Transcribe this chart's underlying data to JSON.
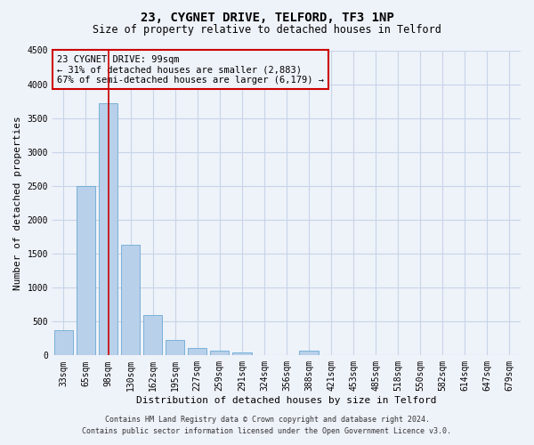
{
  "title": "23, CYGNET DRIVE, TELFORD, TF3 1NP",
  "subtitle": "Size of property relative to detached houses in Telford",
  "xlabel": "Distribution of detached houses by size in Telford",
  "ylabel": "Number of detached properties",
  "categories": [
    "33sqm",
    "65sqm",
    "98sqm",
    "130sqm",
    "162sqm",
    "195sqm",
    "227sqm",
    "259sqm",
    "291sqm",
    "324sqm",
    "356sqm",
    "388sqm",
    "421sqm",
    "453sqm",
    "485sqm",
    "518sqm",
    "550sqm",
    "582sqm",
    "614sqm",
    "647sqm",
    "679sqm"
  ],
  "bar_values": [
    370,
    2500,
    3720,
    1630,
    590,
    225,
    105,
    65,
    45,
    0,
    0,
    65,
    0,
    0,
    0,
    0,
    0,
    0,
    0,
    0,
    0
  ],
  "bar_color": "#b8d0ea",
  "bar_edgecolor": "#6aaad4",
  "grid_color": "#c8d4e8",
  "ylim": [
    0,
    4500
  ],
  "yticks": [
    0,
    500,
    1000,
    1500,
    2000,
    2500,
    3000,
    3500,
    4000,
    4500
  ],
  "highlight_bar_index": 2,
  "highlight_line_color": "#cc0000",
  "annotation_line1": "23 CYGNET DRIVE: 99sqm",
  "annotation_line2": "← 31% of detached houses are smaller (2,883)",
  "annotation_line3": "67% of semi-detached houses are larger (6,179) →",
  "annotation_box_color": "#cc0000",
  "footer_line1": "Contains HM Land Registry data © Crown copyright and database right 2024.",
  "footer_line2": "Contains public sector information licensed under the Open Government Licence v3.0.",
  "background_color": "#eef2f9",
  "title_fontsize": 10,
  "subtitle_fontsize": 8.5,
  "tick_fontsize": 7,
  "ylabel_fontsize": 8,
  "xlabel_fontsize": 8,
  "annotation_fontsize": 7.5,
  "footer_fontsize": 6
}
